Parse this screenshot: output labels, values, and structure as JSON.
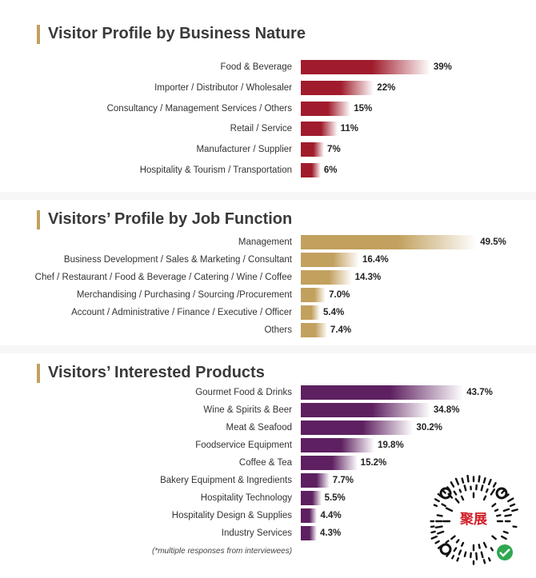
{
  "chart_data": [
    {
      "type": "bar",
      "orientation": "horizontal",
      "title": "Visitor Profile by Business Nature",
      "categories": [
        "Food & Beverage",
        "Importer / Distributor / Wholesaler",
        "Consultancy / Management Services / Others",
        "Retail / Service",
        "Manufacturer / Supplier",
        "Hospitality & Tourism / Transportation"
      ],
      "values": [
        39,
        22,
        15,
        11,
        7,
        6
      ],
      "value_labels": [
        "39%",
        "22%",
        "15%",
        "11%",
        "7%",
        "6%"
      ],
      "color": "#a01c2c"
    },
    {
      "type": "bar",
      "orientation": "horizontal",
      "title": "Visitors’ Profile by Job Function",
      "categories": [
        "Management",
        "Business Development / Sales & Marketing / Consultant",
        "Chef / Restaurant / Food & Beverage / Catering / Wine / Coffee",
        "Merchandising / Purchasing / Sourcing /Procurement",
        "Account / Administrative / Finance / Executive / Officer",
        "Others"
      ],
      "values": [
        49.5,
        16.4,
        14.3,
        7.0,
        5.4,
        7.4
      ],
      "value_labels": [
        "49.5%",
        "16.4%",
        "14.3%",
        "7.0%",
        "5.4%",
        "7.4%"
      ],
      "color": "#c2a05e"
    },
    {
      "type": "bar",
      "orientation": "horizontal",
      "title": "Visitors’ Interested Products",
      "categories": [
        "Gourmet Food & Drinks",
        "Wine & Spirits & Beer",
        "Meat & Seafood",
        "Foodservice Equipment",
        "Coffee & Tea",
        "Bakery Equipment & Ingredients",
        "Hospitality Technology",
        "Hospitality Design & Supplies",
        "Industry Services"
      ],
      "values": [
        43.7,
        34.8,
        30.2,
        19.8,
        15.2,
        7.7,
        5.5,
        4.4,
        4.3
      ],
      "value_labels": [
        "43.7%",
        "34.8%",
        "30.2%",
        "19.8%",
        "15.2%",
        "7.7%",
        "5.5%",
        "4.4%",
        "4.3%"
      ],
      "color": "#5e2060"
    }
  ],
  "footnote": "(*multiple responses from interviewees)",
  "qr": {
    "logo_text": "聚展"
  }
}
